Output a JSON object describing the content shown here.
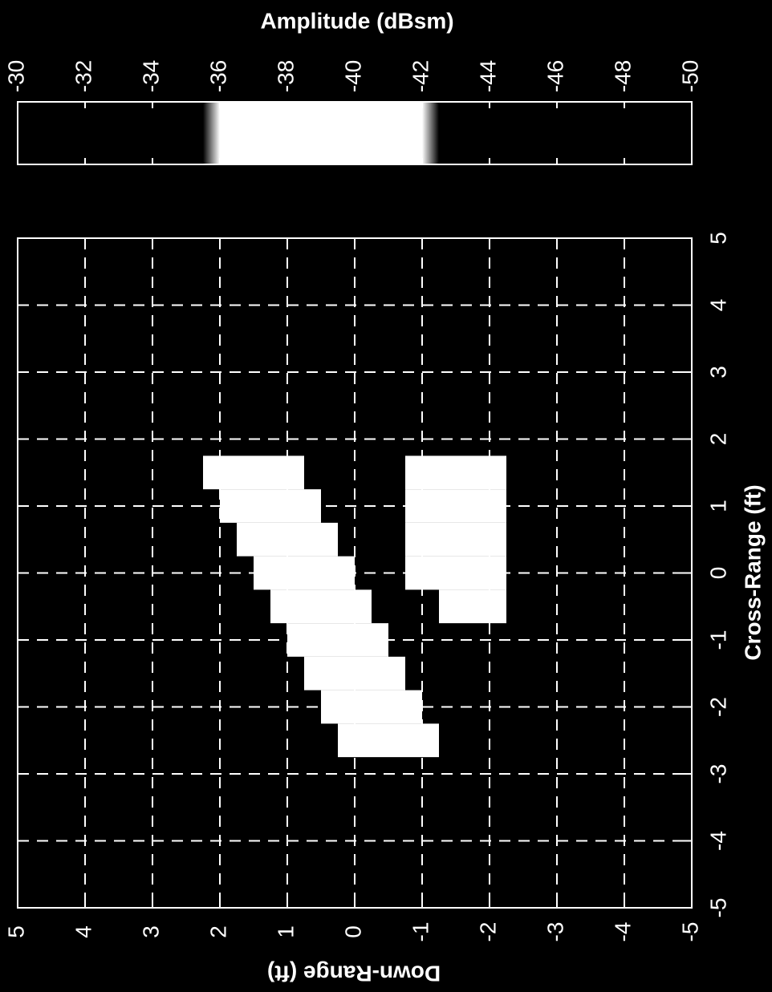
{
  "chart_data": {
    "type": "heatmap",
    "title": "Amplitude (dBsm)",
    "x_label": "Cross-Range (ft)",
    "y_label": "Down-Range (ft)",
    "xlim": [
      -5,
      5
    ],
    "xticks": [
      -5,
      -4,
      -3,
      -2,
      -1,
      0,
      1,
      2,
      3,
      4,
      5
    ],
    "ylim": [
      -5,
      5
    ],
    "yticks": [
      -5,
      -4,
      -3,
      -2,
      -1,
      0,
      1,
      2,
      3,
      4,
      5
    ],
    "grid": true,
    "colorbar": {
      "lim": [
        -30,
        -50
      ],
      "ticks": [
        -30,
        -32,
        -34,
        -36,
        -38,
        -40,
        -42,
        -44,
        -46,
        -48,
        -50
      ]
    },
    "colormap": [
      {
        "value": -30,
        "color": "#000000"
      },
      {
        "value": -35.5,
        "color": "#000000"
      },
      {
        "value": -36,
        "color": "#ffffff"
      },
      {
        "value": -42,
        "color": "#ffffff"
      },
      {
        "value": -42.5,
        "color": "#000000"
      },
      {
        "value": -50,
        "color": "#000000"
      }
    ],
    "cells": {
      "x": [
        1.5,
        1.5,
        1.5,
        1,
        1,
        1,
        0.5,
        0.5,
        0.5,
        0,
        0,
        0,
        -0.5,
        -0.5,
        -0.5,
        -1,
        -1,
        -1,
        -1.5,
        -1.5,
        -1.5,
        -2,
        -2,
        -2,
        -2.5,
        -2.5,
        -2.5,
        1.5,
        1.5,
        1.5,
        1,
        1,
        1,
        0.5,
        0.5,
        0.5,
        0,
        0,
        0,
        -0.5,
        -0.5
      ],
      "y": [
        2,
        1.5,
        1,
        1.75,
        1.25,
        0.75,
        1.5,
        1,
        0.5,
        1.25,
        0.75,
        0.25,
        1,
        0.5,
        0,
        0.75,
        0.25,
        -0.25,
        0.5,
        0,
        -0.5,
        0.25,
        -0.25,
        -0.75,
        0,
        -0.5,
        -1,
        -1,
        -1.5,
        -2,
        -1,
        -1.5,
        -2,
        -1,
        -1.5,
        -2,
        -1,
        -1.5,
        -2,
        -1.5,
        -2
      ],
      "values": [
        -41,
        -38,
        -40,
        -40,
        -37,
        -39,
        -39,
        -38,
        -41,
        -41,
        -37,
        -38,
        -40,
        -38,
        -39,
        -39,
        -37,
        -40,
        -41,
        -38,
        -39,
        -40,
        -37,
        -41,
        -41,
        -39,
        -40,
        -41,
        -38,
        -40,
        -39,
        -37,
        -40,
        -38,
        -39,
        -41,
        -40,
        -38,
        -39,
        -41,
        -40
      ]
    }
  }
}
